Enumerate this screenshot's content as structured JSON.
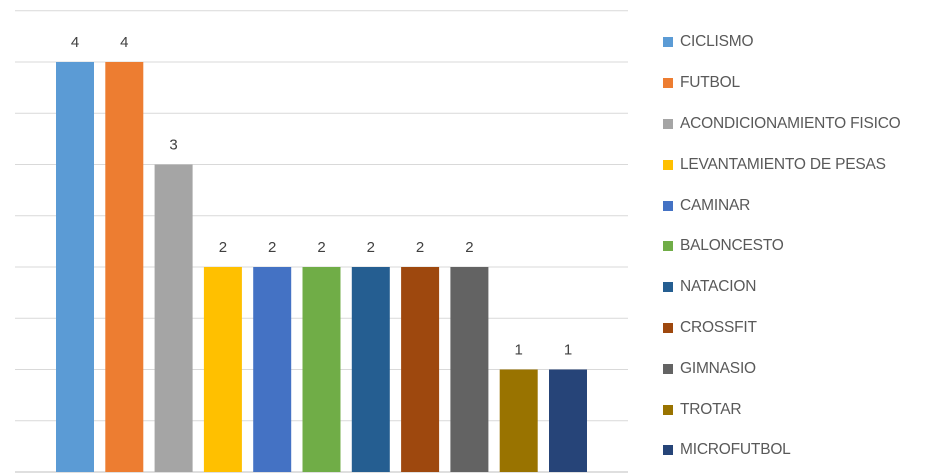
{
  "chart_data": {
    "type": "bar",
    "title": "",
    "xlabel": "",
    "ylabel": "",
    "ylim": [
      0,
      4.5
    ],
    "grid": true,
    "legend_position": "right",
    "series": [
      {
        "name": "CICLISMO",
        "value": 4,
        "color": "#5B9BD5"
      },
      {
        "name": "FUTBOL",
        "value": 4,
        "color": "#ED7D31"
      },
      {
        "name": "ACONDICIONAMIENTO FISICO",
        "value": 3,
        "color": "#A5A5A5"
      },
      {
        "name": "LEVANTAMIENTO DE PESAS",
        "value": 2,
        "color": "#FFC000"
      },
      {
        "name": "CAMINAR",
        "value": 2,
        "color": "#4472C4"
      },
      {
        "name": "BALONCESTO",
        "value": 2,
        "color": "#70AD47"
      },
      {
        "name": "NATACION",
        "value": 2,
        "color": "#255E91"
      },
      {
        "name": "CROSSFIT",
        "value": 2,
        "color": "#9E480E"
      },
      {
        "name": "GIMNASIO",
        "value": 2,
        "color": "#636363"
      },
      {
        "name": "TROTAR",
        "value": 1,
        "color": "#997300"
      },
      {
        "name": "MICROFUTBOL",
        "value": 1,
        "color": "#264478"
      }
    ]
  }
}
